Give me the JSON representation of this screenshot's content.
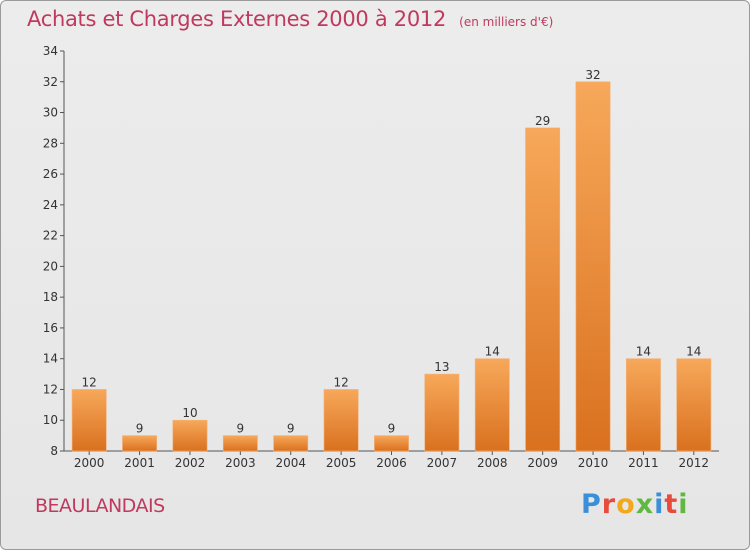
{
  "header": {
    "title": "Achats et Charges Externes 2000 à 2012",
    "subtitle": "(en milliers d'€)"
  },
  "footer": {
    "commune": "BEAULANDAIS",
    "logo_letters": [
      "P",
      "r",
      "o",
      "x",
      "i",
      "t",
      "i"
    ]
  },
  "chart_data": {
    "type": "bar",
    "title": "Achats et Charges Externes 2000 à 2012",
    "subtitle": "(en milliers d'€)",
    "categories": [
      "2000",
      "2001",
      "2002",
      "2003",
      "2004",
      "2005",
      "2006",
      "2007",
      "2008",
      "2009",
      "2010",
      "2011",
      "2012"
    ],
    "values": [
      12,
      9,
      10,
      9,
      9,
      12,
      9,
      13,
      14,
      29,
      32,
      14,
      14
    ],
    "ylim": [
      8,
      34
    ],
    "yticks": [
      8,
      10,
      12,
      14,
      16,
      18,
      20,
      22,
      24,
      26,
      28,
      30,
      32,
      34
    ],
    "xlabel": "",
    "ylabel": "",
    "grid": false,
    "legend": "none",
    "colors": {
      "bar_light": "#f7a85a",
      "bar_dark": "#d9711f",
      "axis": "#555555",
      "title": "#c0395e"
    }
  }
}
